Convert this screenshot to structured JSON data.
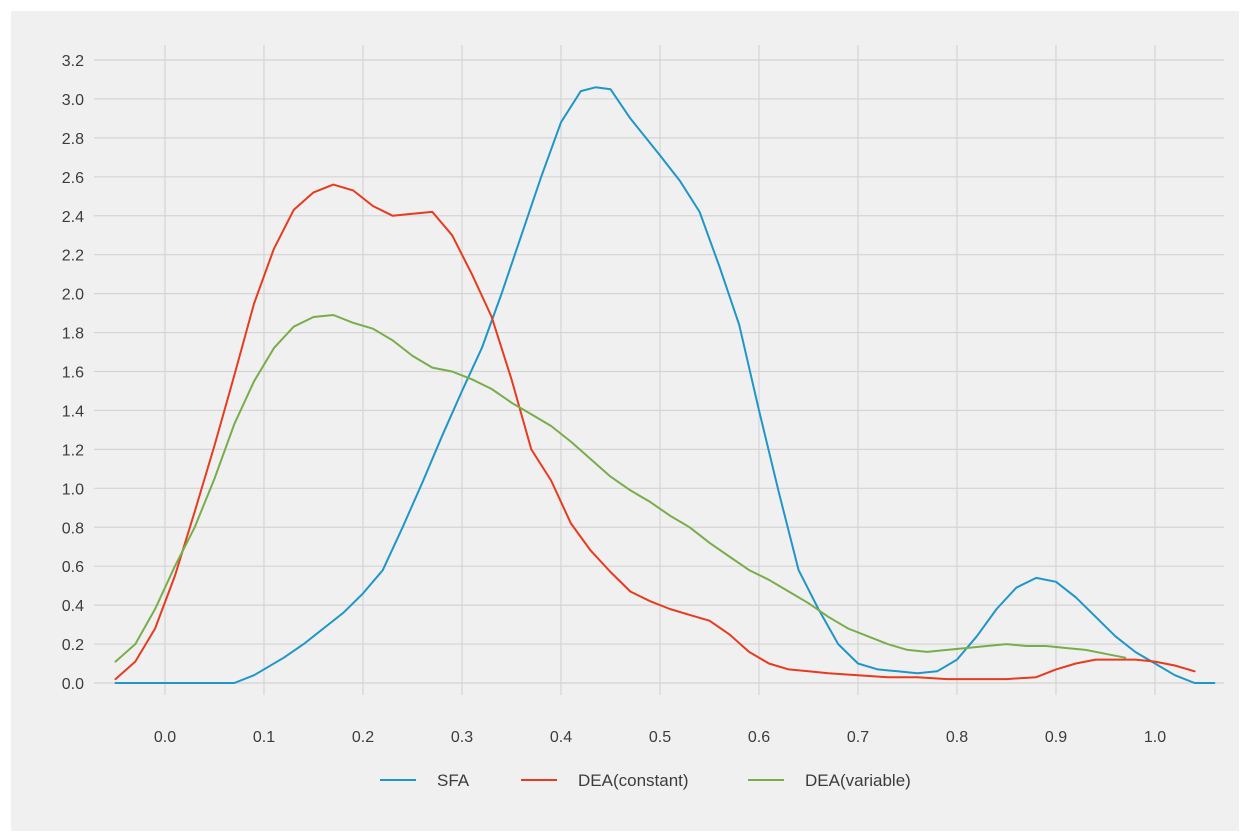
{
  "chart_data": {
    "type": "line",
    "title": "",
    "xlabel": "",
    "ylabel": "",
    "xlim": [
      -0.05,
      1.06
    ],
    "ylim": [
      0,
      3.2
    ],
    "xticks": [
      "0.0",
      "0.1",
      "0.2",
      "0.3",
      "0.4",
      "0.5",
      "0.6",
      "0.7",
      "0.8",
      "0.9",
      "1.0"
    ],
    "yticks": [
      "0.0",
      "0.2",
      "0.4",
      "0.6",
      "0.8",
      "1.0",
      "1.2",
      "1.4",
      "1.6",
      "1.8",
      "2.0",
      "2.2",
      "2.4",
      "2.6",
      "2.8",
      "3.0",
      "3.2"
    ],
    "grid": true,
    "legend_position": "bottom",
    "series": [
      {
        "name": "SFA",
        "color": "#1f96c8",
        "points": [
          [
            -0.05,
            0.0
          ],
          [
            0.0,
            0.0
          ],
          [
            0.03,
            0.0
          ],
          [
            0.07,
            0.0
          ],
          [
            0.09,
            0.04
          ],
          [
            0.12,
            0.13
          ],
          [
            0.14,
            0.2
          ],
          [
            0.16,
            0.28
          ],
          [
            0.18,
            0.36
          ],
          [
            0.2,
            0.46
          ],
          [
            0.22,
            0.58
          ],
          [
            0.24,
            0.8
          ],
          [
            0.26,
            1.03
          ],
          [
            0.28,
            1.27
          ],
          [
            0.3,
            1.5
          ],
          [
            0.32,
            1.72
          ],
          [
            0.34,
            2.0
          ],
          [
            0.36,
            2.3
          ],
          [
            0.38,
            2.6
          ],
          [
            0.4,
            2.88
          ],
          [
            0.42,
            3.04
          ],
          [
            0.435,
            3.06
          ],
          [
            0.45,
            3.05
          ],
          [
            0.47,
            2.9
          ],
          [
            0.5,
            2.71
          ],
          [
            0.52,
            2.58
          ],
          [
            0.54,
            2.42
          ],
          [
            0.56,
            2.14
          ],
          [
            0.58,
            1.84
          ],
          [
            0.6,
            1.4
          ],
          [
            0.62,
            0.98
          ],
          [
            0.64,
            0.58
          ],
          [
            0.66,
            0.38
          ],
          [
            0.68,
            0.2
          ],
          [
            0.7,
            0.1
          ],
          [
            0.72,
            0.07
          ],
          [
            0.74,
            0.06
          ],
          [
            0.76,
            0.05
          ],
          [
            0.78,
            0.06
          ],
          [
            0.8,
            0.12
          ],
          [
            0.82,
            0.24
          ],
          [
            0.84,
            0.38
          ],
          [
            0.86,
            0.49
          ],
          [
            0.88,
            0.54
          ],
          [
            0.9,
            0.52
          ],
          [
            0.92,
            0.44
          ],
          [
            0.94,
            0.34
          ],
          [
            0.96,
            0.24
          ],
          [
            0.98,
            0.16
          ],
          [
            1.0,
            0.1
          ],
          [
            1.02,
            0.04
          ],
          [
            1.04,
            0.0
          ],
          [
            1.06,
            0.0
          ]
        ]
      },
      {
        "name": "DEA(constant)",
        "color": "#e63b1e",
        "points": [
          [
            -0.05,
            0.02
          ],
          [
            -0.03,
            0.11
          ],
          [
            -0.01,
            0.28
          ],
          [
            0.01,
            0.55
          ],
          [
            0.03,
            0.88
          ],
          [
            0.05,
            1.22
          ],
          [
            0.07,
            1.58
          ],
          [
            0.09,
            1.95
          ],
          [
            0.11,
            2.23
          ],
          [
            0.13,
            2.43
          ],
          [
            0.15,
            2.52
          ],
          [
            0.17,
            2.56
          ],
          [
            0.19,
            2.53
          ],
          [
            0.21,
            2.45
          ],
          [
            0.23,
            2.4
          ],
          [
            0.25,
            2.41
          ],
          [
            0.27,
            2.42
          ],
          [
            0.29,
            2.3
          ],
          [
            0.31,
            2.1
          ],
          [
            0.33,
            1.88
          ],
          [
            0.35,
            1.56
          ],
          [
            0.37,
            1.2
          ],
          [
            0.39,
            1.04
          ],
          [
            0.41,
            0.82
          ],
          [
            0.43,
            0.68
          ],
          [
            0.45,
            0.57
          ],
          [
            0.47,
            0.47
          ],
          [
            0.49,
            0.42
          ],
          [
            0.51,
            0.38
          ],
          [
            0.53,
            0.35
          ],
          [
            0.55,
            0.32
          ],
          [
            0.57,
            0.25
          ],
          [
            0.59,
            0.16
          ],
          [
            0.61,
            0.1
          ],
          [
            0.63,
            0.07
          ],
          [
            0.65,
            0.06
          ],
          [
            0.67,
            0.05
          ],
          [
            0.7,
            0.04
          ],
          [
            0.73,
            0.03
          ],
          [
            0.76,
            0.03
          ],
          [
            0.79,
            0.02
          ],
          [
            0.82,
            0.02
          ],
          [
            0.85,
            0.02
          ],
          [
            0.88,
            0.03
          ],
          [
            0.9,
            0.07
          ],
          [
            0.92,
            0.1
          ],
          [
            0.94,
            0.12
          ],
          [
            0.96,
            0.12
          ],
          [
            0.98,
            0.12
          ],
          [
            1.0,
            0.11
          ],
          [
            1.02,
            0.09
          ],
          [
            1.04,
            0.06
          ]
        ]
      },
      {
        "name": "DEA(variable)",
        "color": "#78ad4b",
        "points": [
          [
            -0.05,
            0.11
          ],
          [
            -0.03,
            0.2
          ],
          [
            -0.01,
            0.38
          ],
          [
            0.01,
            0.6
          ],
          [
            0.03,
            0.8
          ],
          [
            0.05,
            1.05
          ],
          [
            0.07,
            1.33
          ],
          [
            0.09,
            1.55
          ],
          [
            0.11,
            1.72
          ],
          [
            0.13,
            1.83
          ],
          [
            0.15,
            1.88
          ],
          [
            0.17,
            1.89
          ],
          [
            0.19,
            1.85
          ],
          [
            0.21,
            1.82
          ],
          [
            0.23,
            1.76
          ],
          [
            0.25,
            1.68
          ],
          [
            0.27,
            1.62
          ],
          [
            0.29,
            1.6
          ],
          [
            0.31,
            1.56
          ],
          [
            0.33,
            1.51
          ],
          [
            0.35,
            1.44
          ],
          [
            0.37,
            1.38
          ],
          [
            0.39,
            1.32
          ],
          [
            0.41,
            1.24
          ],
          [
            0.43,
            1.15
          ],
          [
            0.45,
            1.06
          ],
          [
            0.47,
            0.99
          ],
          [
            0.49,
            0.93
          ],
          [
            0.51,
            0.86
          ],
          [
            0.53,
            0.8
          ],
          [
            0.55,
            0.72
          ],
          [
            0.57,
            0.65
          ],
          [
            0.59,
            0.58
          ],
          [
            0.61,
            0.53
          ],
          [
            0.63,
            0.47
          ],
          [
            0.65,
            0.41
          ],
          [
            0.67,
            0.34
          ],
          [
            0.69,
            0.28
          ],
          [
            0.71,
            0.24
          ],
          [
            0.73,
            0.2
          ],
          [
            0.75,
            0.17
          ],
          [
            0.77,
            0.16
          ],
          [
            0.79,
            0.17
          ],
          [
            0.81,
            0.18
          ],
          [
            0.83,
            0.19
          ],
          [
            0.85,
            0.2
          ],
          [
            0.87,
            0.19
          ],
          [
            0.89,
            0.19
          ],
          [
            0.91,
            0.18
          ],
          [
            0.93,
            0.17
          ],
          [
            0.95,
            0.15
          ],
          [
            0.97,
            0.13
          ]
        ]
      }
    ]
  }
}
